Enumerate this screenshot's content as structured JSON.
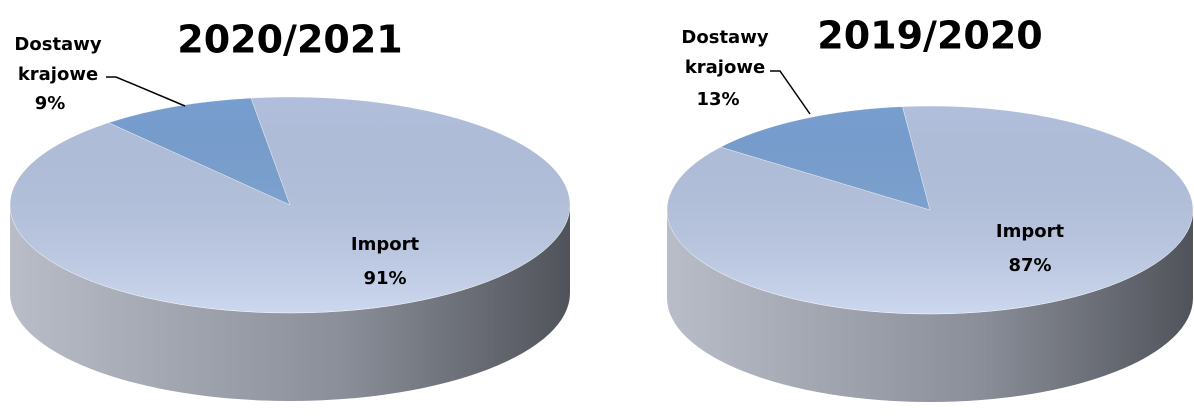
{
  "chart_data": [
    {
      "type": "pie",
      "title": "2020/2021",
      "categories": [
        "Dostawy krajowe",
        "Import"
      ],
      "values": [
        9,
        91
      ],
      "value_labels": [
        "9%",
        "91%"
      ],
      "colors": [
        "#7ea8dd",
        "#bccbea"
      ]
    },
    {
      "type": "pie",
      "title": "2019/2020",
      "categories": [
        "Dostawy krajowe",
        "Import"
      ],
      "values": [
        13,
        87
      ],
      "value_labels": [
        "13%",
        "87%"
      ],
      "colors": [
        "#7ea8dd",
        "#bccbea"
      ]
    }
  ]
}
